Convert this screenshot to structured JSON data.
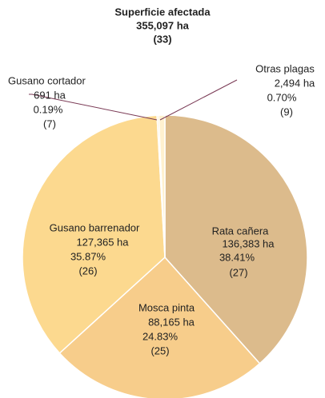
{
  "chart_data": {
    "type": "pie",
    "title": "Superficie afectada",
    "total": "355,097 ha",
    "count": "(33)",
    "categories": [
      "Rata cañera",
      "Mosca pinta",
      "Gusano barrenador",
      "Gusano cortador",
      "Otras plagas"
    ],
    "values": [
      38.41,
      24.83,
      35.87,
      0.19,
      0.7
    ],
    "value_labels": [
      "38.41%",
      "24.83%",
      "35.87%",
      "0.19%",
      "0.70%"
    ],
    "area_labels": [
      "136,383 ha",
      "88,165 ha",
      "127,365 ha",
      "691 ha",
      "2,494 ha"
    ],
    "counts": [
      "(27)",
      "(25)",
      "(26)",
      "(7)",
      "(9)"
    ],
    "colors": [
      "#dcbb8c",
      "#f7cd8b",
      "#fcd98f",
      "#fde6b0",
      "#fff1cf"
    ]
  }
}
